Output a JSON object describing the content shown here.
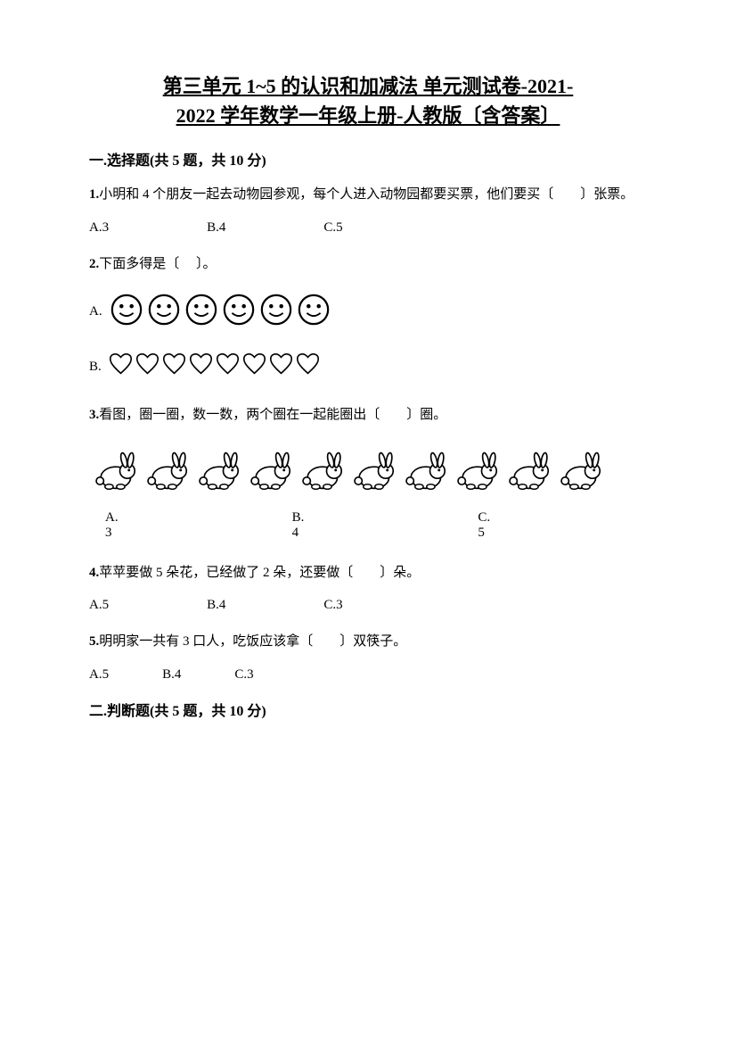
{
  "title_line1": "第三单元 1~5 的认识和加减法 单元测试卷-2021-",
  "title_line2": "2022 学年数学一年级上册-人教版〔含答案〕",
  "section1": {
    "heading": "一.选择题(共 5 题，共 10 分)",
    "q1": {
      "num": "1.",
      "text": "小明和 4 个朋友一起去动物园参观，每个人进入动物园都要买票，他们要买〔　　〕张票。",
      "optA": "A.3",
      "optB": "B.4",
      "optC": "C.5"
    },
    "q2": {
      "num": "2.",
      "text": "下面多得是〔　  〕。",
      "labelA": "A.",
      "labelB": "B.",
      "smiley_count": 6,
      "heart_count": 8
    },
    "q3": {
      "num": "3.",
      "text": "看图，圈一圈，数一数，两个圈在一起能圈出〔　　〕圈。",
      "rabbit_count": 10,
      "optA": "A.　3",
      "optB": "B.　4",
      "optC": "C.　5"
    },
    "q4": {
      "num": "4.",
      "text": "苹苹要做 5 朵花，已经做了 2 朵，还要做〔　　〕朵。",
      "optA": "A.5",
      "optB": "B.4",
      "optC": "C.3"
    },
    "q5": {
      "num": "5.",
      "text": "明明家一共有 3 口人，吃饭应该拿〔　　〕双筷子。",
      "optA": "A.5",
      "optB": "B.4",
      "optC": "C.3"
    }
  },
  "section2": {
    "heading": "二.判断题(共 5 题，共 10 分)"
  },
  "colors": {
    "text": "#000000",
    "background": "#ffffff"
  }
}
